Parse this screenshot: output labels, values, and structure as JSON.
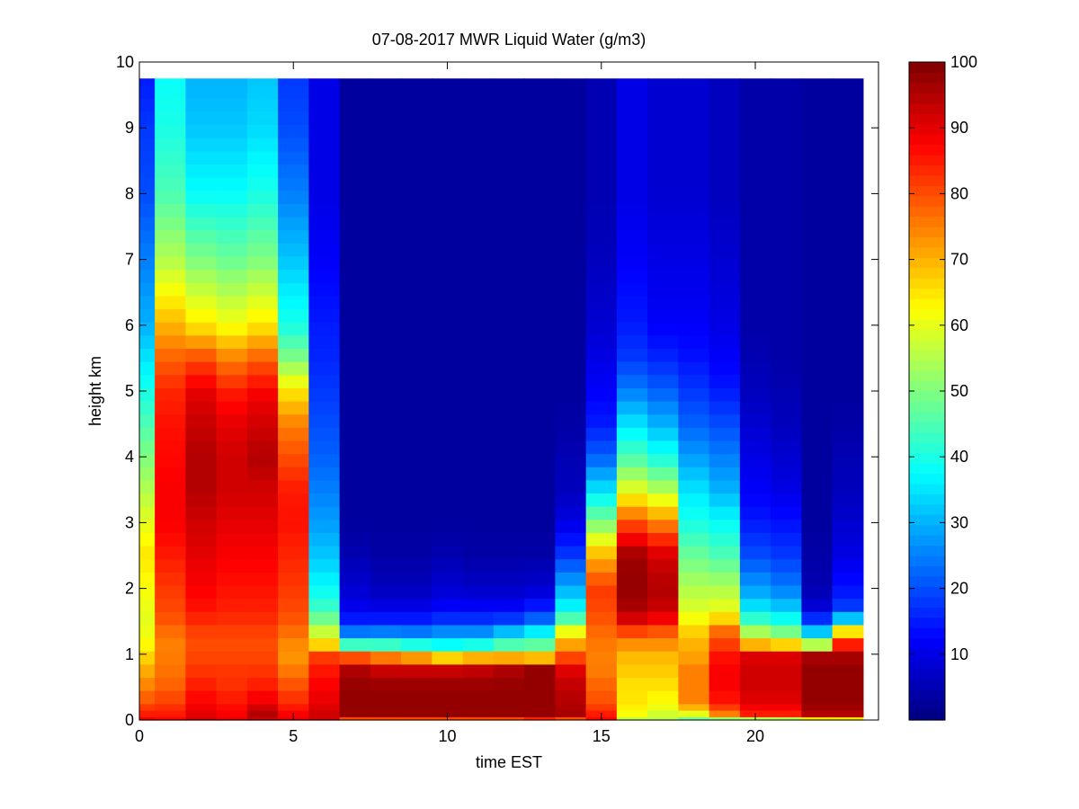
{
  "chart_data": {
    "type": "heatmap",
    "title": "07-08-2017 MWR Liquid Water (g/m3)",
    "xlabel": "time EST",
    "ylabel": "height km",
    "xlim": [
      0,
      24
    ],
    "ylim": [
      0,
      10
    ],
    "xticks": [
      0,
      5,
      10,
      15,
      20
    ],
    "yticks": [
      0,
      1,
      2,
      3,
      4,
      5,
      6,
      7,
      8,
      9,
      10
    ],
    "colorbar": {
      "clim": [
        0,
        100
      ],
      "ticks": [
        10,
        20,
        30,
        40,
        50,
        60,
        70,
        80,
        90,
        100
      ],
      "colormap": "jet"
    },
    "time_centers": [
      0,
      1,
      2,
      3,
      4,
      5,
      6,
      7,
      8,
      9,
      10,
      11,
      12,
      13,
      14,
      15,
      16,
      17,
      18,
      19,
      20,
      21,
      22,
      23
    ],
    "height_profile_nodes": [
      0,
      0.1,
      0.25,
      0.5,
      0.8,
      1.05,
      1.2,
      1.45,
      1.6,
      2.0,
      2.5,
      3.0,
      3.5,
      4.0,
      4.5,
      5.0,
      5.5,
      6.0,
      7.0,
      8.0,
      9.0,
      9.75
    ],
    "columns": [
      [
        90,
        85,
        80,
        75,
        70,
        65,
        62,
        60,
        60,
        62,
        65,
        60,
        55,
        50,
        45,
        40,
        35,
        30,
        25,
        20,
        18,
        15
      ],
      [
        88,
        85,
        82,
        78,
        76,
        75,
        75,
        78,
        80,
        82,
        85,
        88,
        88,
        87,
        86,
        84,
        78,
        70,
        55,
        45,
        40,
        38
      ],
      [
        92,
        90,
        88,
        85,
        82,
        80,
        80,
        82,
        85,
        88,
        90,
        92,
        95,
        95,
        93,
        90,
        80,
        65,
        50,
        38,
        32,
        30
      ],
      [
        90,
        88,
        86,
        83,
        82,
        80,
        80,
        82,
        84,
        86,
        88,
        90,
        92,
        92,
        90,
        85,
        75,
        62,
        48,
        38,
        32,
        30
      ],
      [
        92,
        95,
        90,
        85,
        82,
        80,
        80,
        82,
        84,
        86,
        88,
        90,
        92,
        95,
        92,
        88,
        78,
        65,
        50,
        40,
        34,
        32
      ],
      [
        90,
        88,
        84,
        80,
        75,
        72,
        75,
        78,
        80,
        82,
        84,
        86,
        85,
        80,
        75,
        65,
        50,
        40,
        32,
        25,
        20,
        18
      ],
      [
        92,
        92,
        90,
        88,
        85,
        80,
        60,
        55,
        45,
        38,
        32,
        28,
        25,
        22,
        20,
        18,
        16,
        15,
        12,
        10,
        10,
        10
      ],
      [
        75,
        98,
        98,
        98,
        95,
        70,
        30,
        20,
        12,
        8,
        5,
        3,
        3,
        3,
        3,
        3,
        3,
        3,
        3,
        3,
        3,
        3
      ],
      [
        75,
        98,
        98,
        98,
        92,
        65,
        32,
        20,
        12,
        6,
        4,
        3,
        3,
        3,
        3,
        3,
        3,
        3,
        3,
        3,
        3,
        3
      ],
      [
        75,
        98,
        98,
        98,
        92,
        60,
        30,
        20,
        12,
        6,
        4,
        3,
        3,
        3,
        3,
        3,
        3,
        3,
        3,
        3,
        3,
        3
      ],
      [
        75,
        98,
        98,
        98,
        92,
        50,
        32,
        22,
        14,
        8,
        5,
        3,
        3,
        3,
        3,
        3,
        3,
        3,
        3,
        3,
        3,
        3
      ],
      [
        75,
        98,
        98,
        98,
        93,
        55,
        32,
        22,
        14,
        7,
        4,
        3,
        3,
        3,
        3,
        3,
        3,
        3,
        3,
        3,
        3,
        3
      ],
      [
        75,
        98,
        98,
        98,
        95,
        55,
        40,
        25,
        14,
        7,
        4,
        3,
        3,
        3,
        3,
        3,
        3,
        3,
        3,
        3,
        3,
        3
      ],
      [
        80,
        98,
        98,
        98,
        98,
        50,
        45,
        30,
        18,
        8,
        4,
        3,
        3,
        3,
        3,
        3,
        3,
        3,
        3,
        3,
        3,
        3
      ],
      [
        75,
        96,
        95,
        94,
        90,
        75,
        70,
        55,
        40,
        30,
        18,
        10,
        6,
        5,
        4,
        3,
        3,
        3,
        3,
        3,
        3,
        3
      ],
      [
        88,
        85,
        80,
        78,
        75,
        75,
        76,
        78,
        80,
        82,
        70,
        50,
        35,
        22,
        15,
        12,
        10,
        8,
        6,
        5,
        5,
        5
      ],
      [
        55,
        62,
        65,
        65,
        68,
        70,
        75,
        85,
        95,
        98,
        97,
        80,
        60,
        45,
        35,
        25,
        18,
        15,
        12,
        10,
        10,
        10
      ],
      [
        55,
        58,
        62,
        65,
        68,
        70,
        75,
        82,
        92,
        95,
        92,
        75,
        55,
        40,
        30,
        22,
        16,
        12,
        10,
        8,
        8,
        8
      ],
      [
        45,
        60,
        75,
        75,
        75,
        70,
        70,
        65,
        60,
        55,
        48,
        40,
        35,
        28,
        22,
        18,
        14,
        12,
        10,
        8,
        8,
        8
      ],
      [
        45,
        75,
        85,
        88,
        88,
        85,
        80,
        75,
        62,
        55,
        45,
        38,
        30,
        25,
        20,
        15,
        12,
        10,
        8,
        6,
        6,
        6
      ],
      [
        45,
        85,
        90,
        92,
        92,
        90,
        60,
        50,
        38,
        28,
        20,
        15,
        12,
        10,
        8,
        6,
        5,
        4,
        4,
        4,
        4,
        4
      ],
      [
        45,
        85,
        90,
        92,
        92,
        90,
        55,
        45,
        35,
        25,
        18,
        14,
        10,
        8,
        6,
        5,
        4,
        4,
        4,
        4,
        4,
        4
      ],
      [
        55,
        95,
        98,
        98,
        98,
        95,
        35,
        30,
        10,
        5,
        4,
        3,
        3,
        3,
        3,
        3,
        3,
        3,
        3,
        3,
        3,
        3
      ],
      [
        55,
        95,
        98,
        98,
        98,
        95,
        80,
        55,
        20,
        14,
        10,
        8,
        6,
        5,
        4,
        3,
        3,
        3,
        3,
        3,
        3,
        3
      ]
    ]
  }
}
